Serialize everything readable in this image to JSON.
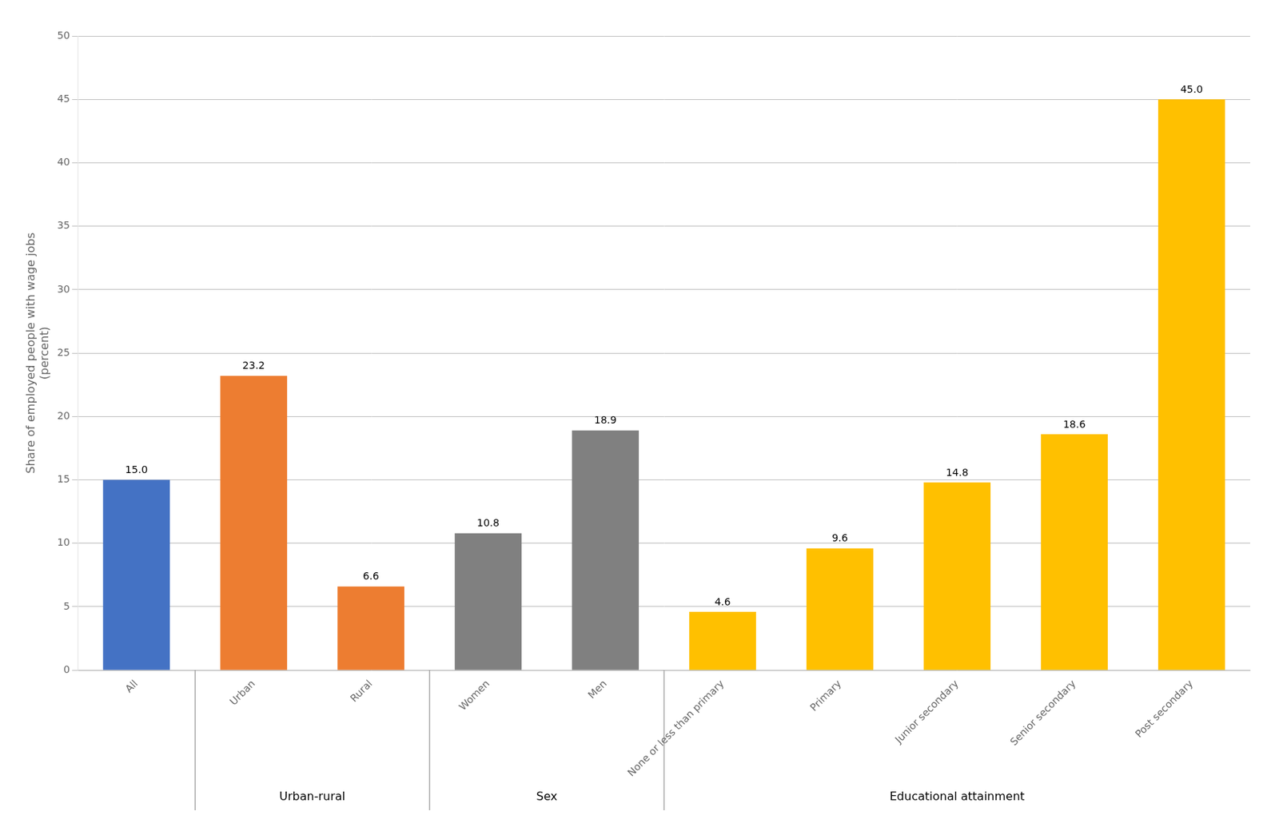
{
  "chart_data": {
    "type": "bar",
    "y_label": "Share of employed people with wage jobs\n(percent)",
    "categories": [
      "All",
      "Urban",
      "Rural",
      "Women",
      "Men",
      "None or less than primary",
      "Primary",
      "Junior secondary",
      "Senior secondary",
      "Post secondary"
    ],
    "values": [
      15.0,
      23.2,
      6.6,
      10.8,
      18.9,
      4.6,
      9.6,
      14.8,
      18.6,
      45.0
    ],
    "value_labels": [
      "15.0",
      "23.2",
      "6.6",
      "10.8",
      "18.9",
      "4.6",
      "9.6",
      "14.8",
      "18.6",
      "45.0"
    ],
    "colors": [
      "#4472C4",
      "#ED7D31",
      "#ED7D31",
      "#808080",
      "#808080",
      "#FFC000",
      "#FFC000",
      "#FFC000",
      "#FFC000",
      "#FFC000"
    ],
    "groups": [
      {
        "name": "Urban-rural",
        "categories": [
          "Urban",
          "Rural"
        ]
      },
      {
        "name": "Sex",
        "categories": [
          "Women",
          "Men"
        ]
      },
      {
        "name": "Educational attainment",
        "categories": [
          "None or less than primary",
          "Primary",
          "Junior secondary",
          "Senior secondary",
          "Post secondary"
        ]
      }
    ],
    "ylim": [
      0,
      50
    ],
    "yticks": [
      0,
      5,
      10,
      15,
      20,
      25,
      30,
      35,
      40,
      45,
      50
    ],
    "grid": true,
    "data_labels": true
  }
}
